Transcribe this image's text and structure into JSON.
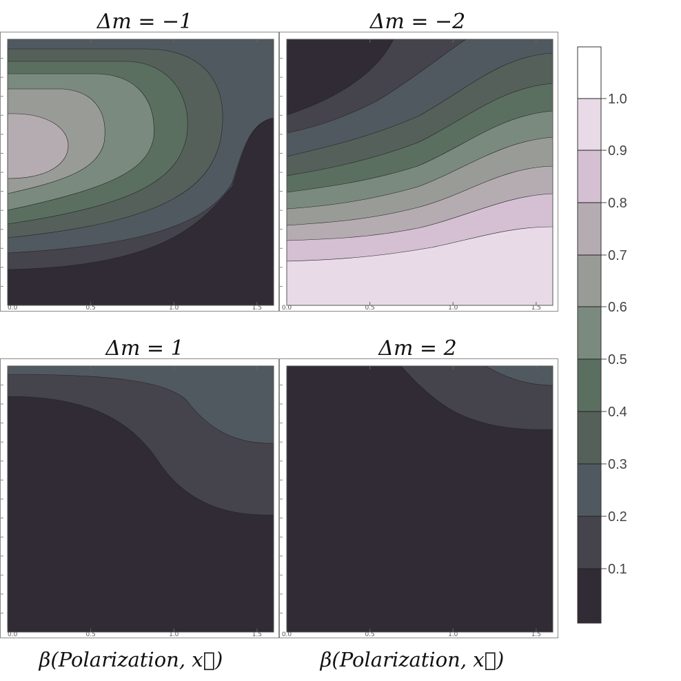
{
  "chart_data": [
    {
      "type": "contour",
      "title": "Δm = −1",
      "xlabel": "",
      "xticks": [
        "0.0",
        "0.5",
        "1.0",
        "1.5"
      ],
      "xlim": [
        0,
        1.6
      ]
    },
    {
      "type": "contour",
      "title": "Δm = −2",
      "xlabel": "",
      "xticks": [
        "0.0",
        "0.5",
        "1.0",
        "1.5"
      ],
      "xlim": [
        0,
        1.6
      ]
    },
    {
      "type": "contour",
      "title": "Δm = 1",
      "xlabel": "β(Polarization, x⃗)",
      "xticks": [
        "0.0",
        "0.5",
        "1.0",
        "1.5"
      ],
      "xlim": [
        0,
        1.6
      ]
    },
    {
      "type": "contour",
      "title": "Δm = 2",
      "xlabel": "β(Polarization, x⃗)",
      "xticks": [
        "0.0",
        "0.5",
        "1.0",
        "1.5"
      ],
      "xlim": [
        0,
        1.6
      ]
    }
  ],
  "colorbar": {
    "labels": [
      "1.0",
      "0.9",
      "0.8",
      "0.7",
      "0.6",
      "0.5",
      "0.4",
      "0.3",
      "0.2",
      "0.1"
    ],
    "levels": [
      1.0,
      0.9,
      0.8,
      0.7,
      0.6,
      0.5,
      0.4,
      0.3,
      0.2,
      0.1
    ],
    "band_colors": [
      "#ffffff",
      "#e8dae6",
      "#d4c0d2",
      "#b5acb2",
      "#999b97",
      "#7b8a7e",
      "#5b6f60",
      "#546059",
      "#515960",
      "#45444c",
      "#302b35"
    ]
  }
}
